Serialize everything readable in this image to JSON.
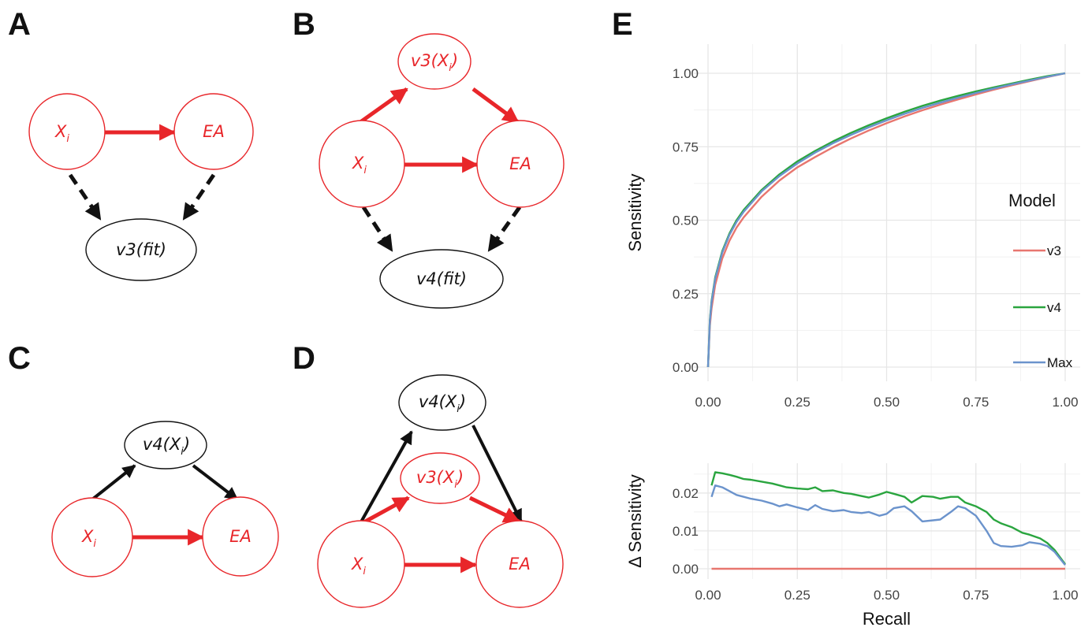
{
  "panels": {
    "A": {
      "letter": "A",
      "nodes": {
        "xi": {
          "main": "X",
          "sub": "i"
        },
        "ea": {
          "main": "EA"
        },
        "fit": {
          "main": "v3(fit)"
        }
      }
    },
    "B": {
      "letter": "B",
      "nodes": {
        "v3xi": {
          "main": "v3(X",
          "sub": "i",
          "close": ")"
        },
        "xi": {
          "main": "X",
          "sub": "i"
        },
        "ea": {
          "main": "EA"
        },
        "fit": {
          "main": "v4(fit)"
        }
      }
    },
    "C": {
      "letter": "C",
      "nodes": {
        "v4xi": {
          "main": "v4(X",
          "sub": "i",
          "close": ")"
        },
        "xi": {
          "main": "X",
          "sub": "i"
        },
        "ea": {
          "main": "EA"
        }
      }
    },
    "D": {
      "letter": "D",
      "nodes": {
        "v4xi": {
          "main": "v4(X",
          "sub": "i",
          "close": ")"
        },
        "v3xi": {
          "main": "v3(X",
          "sub": "i",
          "close": ")"
        },
        "xi": {
          "main": "X",
          "sub": "i"
        },
        "ea": {
          "main": "EA"
        }
      }
    },
    "E": {
      "letter": "E"
    }
  },
  "colors": {
    "red": "#e8262a",
    "black": "#111111",
    "v3": "#e8766f",
    "v4": "#2aa53f",
    "max": "#6b93cc"
  },
  "chart_data": [
    {
      "type": "line",
      "title": "",
      "xlabel": "",
      "ylabel": "Sensitivity",
      "xlim": [
        0,
        1
      ],
      "ylim": [
        0,
        1
      ],
      "xticks": [
        "0.00",
        "0.25",
        "0.50",
        "0.75",
        "1.00"
      ],
      "yticks": [
        "0.00",
        "0.25",
        "0.50",
        "0.75",
        "1.00"
      ],
      "grid": true,
      "legend": {
        "title": "Model",
        "placement": "right",
        "entries": [
          "v3",
          "v4",
          "Max"
        ]
      },
      "x": [
        0,
        0.005,
        0.01,
        0.02,
        0.04,
        0.06,
        0.08,
        0.1,
        0.15,
        0.2,
        0.25,
        0.3,
        0.35,
        0.4,
        0.45,
        0.5,
        0.55,
        0.6,
        0.65,
        0.7,
        0.75,
        0.8,
        0.85,
        0.9,
        0.95,
        1.0
      ],
      "series": [
        {
          "name": "v3",
          "values": [
            0,
            0.14,
            0.2,
            0.28,
            0.37,
            0.43,
            0.475,
            0.51,
            0.58,
            0.635,
            0.68,
            0.715,
            0.748,
            0.778,
            0.805,
            0.83,
            0.853,
            0.874,
            0.893,
            0.911,
            0.928,
            0.944,
            0.959,
            0.973,
            0.987,
            1.0
          ]
        },
        {
          "name": "v4",
          "values": [
            0,
            0.16,
            0.225,
            0.305,
            0.395,
            0.455,
            0.5,
            0.535,
            0.603,
            0.656,
            0.7,
            0.736,
            0.768,
            0.797,
            0.823,
            0.847,
            0.869,
            0.889,
            0.907,
            0.923,
            0.938,
            0.952,
            0.965,
            0.978,
            0.99,
            1.0
          ]
        },
        {
          "name": "Max",
          "values": [
            0,
            0.155,
            0.22,
            0.3,
            0.39,
            0.45,
            0.494,
            0.529,
            0.598,
            0.65,
            0.693,
            0.73,
            0.762,
            0.79,
            0.816,
            0.84,
            0.862,
            0.882,
            0.9,
            0.917,
            0.933,
            0.948,
            0.962,
            0.975,
            0.988,
            1.0
          ]
        }
      ]
    },
    {
      "type": "line",
      "title": "",
      "xlabel": "Recall",
      "ylabel": "Δ Sensitivity",
      "xlim": [
        0,
        1
      ],
      "ylim": [
        0,
        0.026
      ],
      "xticks": [
        "0.00",
        "0.25",
        "0.50",
        "0.75",
        "1.00"
      ],
      "yticks": [
        "0.00",
        "0.01",
        "0.02"
      ],
      "grid": true,
      "x": [
        0.01,
        0.02,
        0.04,
        0.06,
        0.08,
        0.1,
        0.12,
        0.15,
        0.18,
        0.2,
        0.22,
        0.25,
        0.28,
        0.3,
        0.32,
        0.35,
        0.38,
        0.4,
        0.43,
        0.45,
        0.48,
        0.5,
        0.52,
        0.55,
        0.57,
        0.6,
        0.63,
        0.65,
        0.68,
        0.7,
        0.72,
        0.75,
        0.78,
        0.8,
        0.82,
        0.85,
        0.88,
        0.9,
        0.93,
        0.95,
        0.97,
        1.0
      ],
      "series": [
        {
          "name": "v3",
          "values": [
            0,
            0,
            0,
            0,
            0,
            0,
            0,
            0,
            0,
            0,
            0,
            0,
            0,
            0,
            0,
            0,
            0,
            0,
            0,
            0,
            0,
            0,
            0,
            0,
            0,
            0,
            0,
            0,
            0,
            0,
            0,
            0,
            0,
            0,
            0,
            0,
            0,
            0,
            0,
            0,
            0,
            0
          ]
        },
        {
          "name": "v4",
          "values": [
            0.022,
            0.0255,
            0.0252,
            0.0248,
            0.0243,
            0.0237,
            0.0235,
            0.023,
            0.0225,
            0.022,
            0.0215,
            0.0212,
            0.021,
            0.0215,
            0.0205,
            0.0207,
            0.02,
            0.0198,
            0.0192,
            0.0188,
            0.0196,
            0.0203,
            0.0198,
            0.019,
            0.0175,
            0.0192,
            0.019,
            0.0185,
            0.019,
            0.019,
            0.0175,
            0.0165,
            0.015,
            0.013,
            0.012,
            0.011,
            0.0095,
            0.009,
            0.008,
            0.0068,
            0.005,
            0.0012
          ]
        },
        {
          "name": "Max",
          "values": [
            0.019,
            0.022,
            0.0215,
            0.0205,
            0.0195,
            0.019,
            0.0185,
            0.018,
            0.0172,
            0.0165,
            0.017,
            0.0162,
            0.0155,
            0.0168,
            0.0158,
            0.0152,
            0.0155,
            0.015,
            0.0147,
            0.015,
            0.014,
            0.0145,
            0.016,
            0.0165,
            0.0152,
            0.0125,
            0.0128,
            0.013,
            0.015,
            0.0165,
            0.016,
            0.014,
            0.01,
            0.0068,
            0.006,
            0.0058,
            0.0062,
            0.007,
            0.0066,
            0.006,
            0.0045,
            0.001
          ]
        }
      ]
    }
  ]
}
